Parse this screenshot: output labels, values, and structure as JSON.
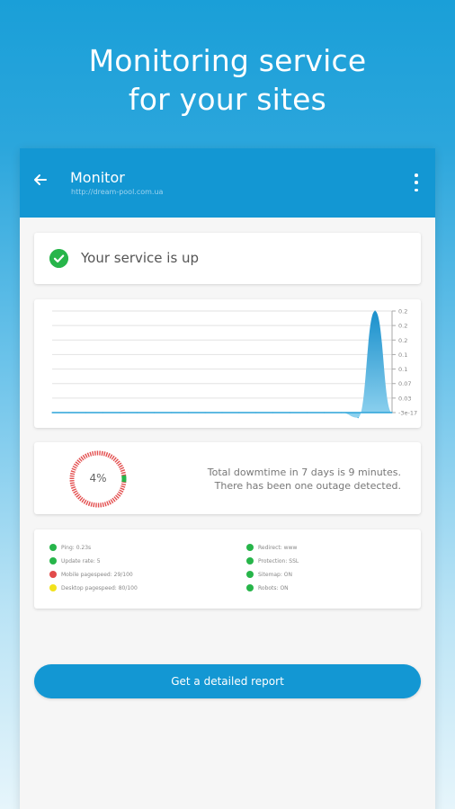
{
  "headline": {
    "line1": "Monitoring service",
    "line2": "for your sites"
  },
  "appbar": {
    "title": "Monitor",
    "url": "http://dream-pool.com.ua",
    "back_icon": "arrow-left-icon",
    "menu_icon": "more-vert-icon"
  },
  "status": {
    "text": "Your service is up",
    "icon": "check-circle-icon",
    "color": "#27b54a"
  },
  "chart_data": {
    "type": "area",
    "y_ticks": [
      "0.2",
      "0.2",
      "0.2",
      "0.1",
      "0.1",
      "0.07",
      "0.03",
      "-3e-17"
    ],
    "x": [
      0,
      1,
      2,
      3,
      4,
      5,
      6,
      7,
      8,
      9,
      10,
      11,
      12,
      13,
      14,
      15,
      16,
      17,
      18,
      19,
      20
    ],
    "values": [
      0,
      0,
      0,
      0,
      0,
      0,
      0,
      0,
      0,
      0,
      0,
      0,
      0,
      0,
      0,
      0,
      0,
      0,
      -0.01,
      0.2,
      0
    ],
    "series_color": "#2aa3d9",
    "grid": true
  },
  "downtime": {
    "percent": "4%",
    "percent_value": 4,
    "line1": "Total dowmtime in 7 days is 9 minutes.",
    "line2": "There has been one outage detected."
  },
  "checks": {
    "left": [
      {
        "label": "Ping: 0.23s",
        "color": "#27b54a"
      },
      {
        "label": "Update rate: 5",
        "color": "#27b54a"
      },
      {
        "label": "Mobile pagespeed: 29/100",
        "color": "#e24b4b"
      },
      {
        "label": "Desktop pagespeed: 80/100",
        "color": "#f2e21c"
      }
    ],
    "right": [
      {
        "label": "Redirect: www",
        "color": "#27b54a"
      },
      {
        "label": "Protection: SSL",
        "color": "#27b54a"
      },
      {
        "label": "Sitemap: ON",
        "color": "#27b54a"
      },
      {
        "label": "Robots: ON",
        "color": "#27b54a"
      }
    ]
  },
  "report_button": {
    "label": "Get a detailed report"
  },
  "colors": {
    "primary": "#1397d3",
    "ok": "#27b54a",
    "bad": "#e24b4b",
    "warn": "#f2e21c"
  }
}
